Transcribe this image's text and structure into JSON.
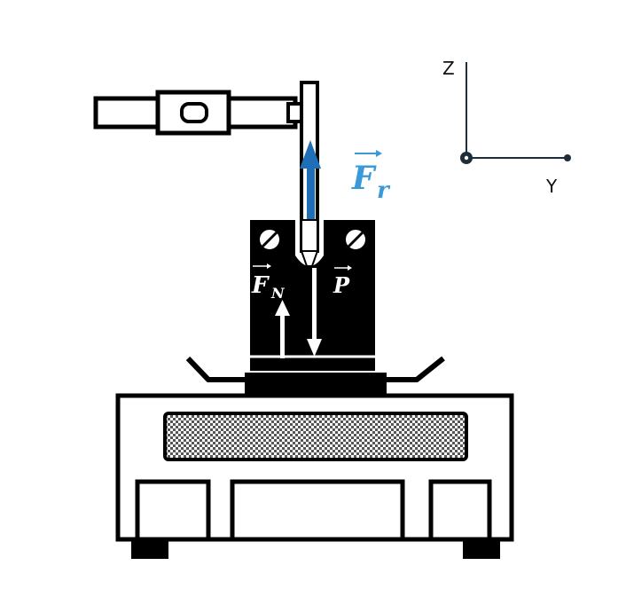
{
  "axes": {
    "z_label": "Z",
    "y_label": "Y",
    "line_color": "#1f2d3a"
  },
  "forces": {
    "fr": {
      "symbol": "F",
      "subscript": "r",
      "color": "#3a9ad9",
      "arrow_color": "#1f6fb8",
      "direction": "up"
    },
    "fn": {
      "symbol": "F",
      "subscript": "N",
      "color": "#ffffff",
      "direction": "up"
    },
    "p": {
      "symbol": "P",
      "subscript": "",
      "color": "#ffffff",
      "direction": "down"
    }
  },
  "apparatus": {
    "outline_color": "#000000",
    "fill_color": "#ffffff",
    "block_color": "#000000"
  }
}
